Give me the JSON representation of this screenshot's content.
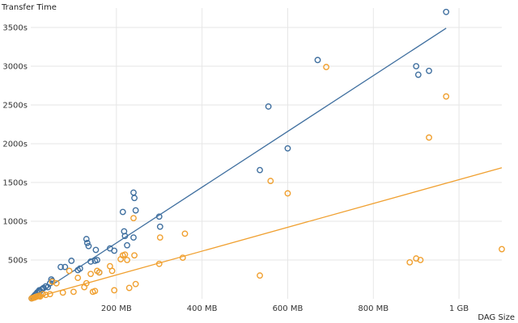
{
  "chart_data": {
    "type": "scatter",
    "title": "",
    "xlabel": "DAG Size",
    "ylabel": "Transfer Time",
    "xlim": [
      0,
      1100
    ],
    "ylim": [
      0,
      3750
    ],
    "grid": true,
    "x_ticks": [
      {
        "value": 200,
        "label": "200 MB"
      },
      {
        "value": 400,
        "label": "400 MB"
      },
      {
        "value": 600,
        "label": "600 MB"
      },
      {
        "value": 800,
        "label": "800 MB"
      },
      {
        "value": 1000,
        "label": "1 GB"
      }
    ],
    "y_ticks": [
      {
        "value": 500,
        "label": "500s"
      },
      {
        "value": 1000,
        "label": "1000s"
      },
      {
        "value": 1500,
        "label": "1500s"
      },
      {
        "value": 2000,
        "label": "2000s"
      },
      {
        "value": 2500,
        "label": "2500s"
      },
      {
        "value": 3000,
        "label": "3000s"
      },
      {
        "value": 3500,
        "label": "3500s"
      }
    ],
    "series": [
      {
        "name": "blue",
        "color": "#3f6f9f",
        "trend": {
          "from": [
            0,
            0
          ],
          "to": [
            970,
            3490
          ]
        },
        "points": [
          [
            2,
            5
          ],
          [
            5,
            20
          ],
          [
            8,
            35
          ],
          [
            10,
            50
          ],
          [
            12,
            60
          ],
          [
            15,
            80
          ],
          [
            18,
            95
          ],
          [
            20,
            110
          ],
          [
            22,
            100
          ],
          [
            25,
            120
          ],
          [
            28,
            130
          ],
          [
            30,
            140
          ],
          [
            35,
            160
          ],
          [
            40,
            150
          ],
          [
            45,
            200
          ],
          [
            48,
            250
          ],
          [
            50,
            230
          ],
          [
            70,
            410
          ],
          [
            80,
            410
          ],
          [
            95,
            490
          ],
          [
            110,
            370
          ],
          [
            115,
            390
          ],
          [
            130,
            770
          ],
          [
            132,
            720
          ],
          [
            135,
            680
          ],
          [
            140,
            480
          ],
          [
            150,
            490
          ],
          [
            152,
            630
          ],
          [
            155,
            500
          ],
          [
            160,
            340
          ],
          [
            185,
            650
          ],
          [
            195,
            620
          ],
          [
            215,
            1120
          ],
          [
            218,
            870
          ],
          [
            220,
            810
          ],
          [
            225,
            690
          ],
          [
            240,
            1370
          ],
          [
            242,
            1300
          ],
          [
            240,
            790
          ],
          [
            245,
            1140
          ],
          [
            300,
            1060
          ],
          [
            302,
            930
          ],
          [
            535,
            1660
          ],
          [
            555,
            2480
          ],
          [
            600,
            1940
          ],
          [
            670,
            3080
          ],
          [
            900,
            3000
          ],
          [
            905,
            2890
          ],
          [
            930,
            2940
          ],
          [
            970,
            3700
          ]
        ]
      },
      {
        "name": "orange",
        "color": "#f0a030",
        "trend": {
          "from": [
            0,
            0
          ],
          "to": [
            1100,
            1690
          ]
        },
        "points": [
          [
            2,
            5
          ],
          [
            5,
            10
          ],
          [
            8,
            15
          ],
          [
            10,
            20
          ],
          [
            12,
            25
          ],
          [
            15,
            30
          ],
          [
            18,
            35
          ],
          [
            20,
            40
          ],
          [
            22,
            30
          ],
          [
            28,
            60
          ],
          [
            35,
            50
          ],
          [
            45,
            60
          ],
          [
            50,
            220
          ],
          [
            60,
            200
          ],
          [
            75,
            80
          ],
          [
            90,
            360
          ],
          [
            100,
            90
          ],
          [
            110,
            270
          ],
          [
            125,
            150
          ],
          [
            130,
            200
          ],
          [
            140,
            320
          ],
          [
            145,
            90
          ],
          [
            150,
            100
          ],
          [
            155,
            360
          ],
          [
            160,
            340
          ],
          [
            185,
            420
          ],
          [
            190,
            360
          ],
          [
            195,
            110
          ],
          [
            210,
            510
          ],
          [
            215,
            560
          ],
          [
            220,
            570
          ],
          [
            225,
            500
          ],
          [
            230,
            140
          ],
          [
            240,
            1040
          ],
          [
            242,
            560
          ],
          [
            245,
            190
          ],
          [
            300,
            450
          ],
          [
            302,
            790
          ],
          [
            355,
            530
          ],
          [
            360,
            840
          ],
          [
            535,
            300
          ],
          [
            560,
            1520
          ],
          [
            600,
            1360
          ],
          [
            690,
            2990
          ],
          [
            885,
            470
          ],
          [
            900,
            520
          ],
          [
            910,
            500
          ],
          [
            930,
            2080
          ],
          [
            970,
            2610
          ],
          [
            1100,
            640
          ]
        ]
      }
    ]
  }
}
